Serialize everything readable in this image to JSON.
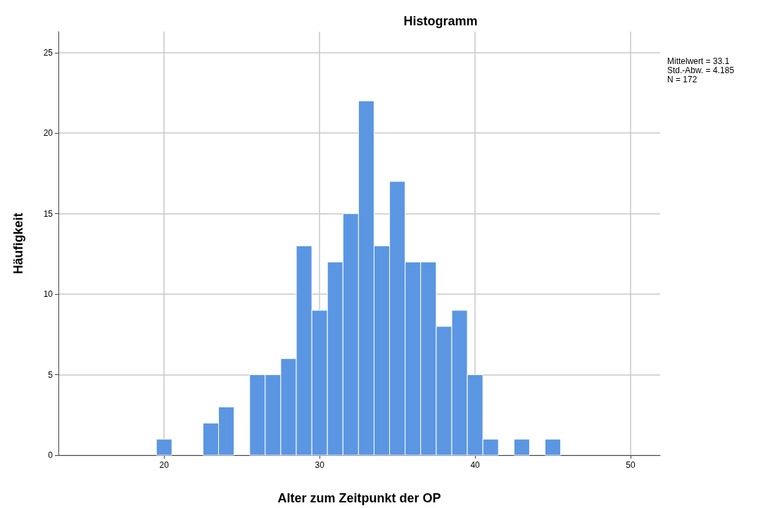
{
  "chart_data": {
    "type": "histogram",
    "title": "Histogramm",
    "xlabel": "Alter zum Zeitpunkt der OP",
    "ylabel": "Häufigkeit",
    "bins": [
      19.5,
      20.5,
      21.5,
      22.5,
      23.5,
      24.5,
      25.5,
      26.5,
      27.5,
      28.5,
      29.5,
      30.5,
      31.5,
      32.5,
      33.5,
      34.5,
      35.5,
      36.5,
      37.5,
      38.5,
      39.5,
      40.5,
      41.5,
      42.5,
      43.5,
      44.5,
      45.5
    ],
    "values": [
      1,
      0,
      0,
      2,
      3,
      0,
      5,
      5,
      6,
      13,
      9,
      12,
      15,
      22,
      13,
      17,
      12,
      12,
      8,
      9,
      5,
      1,
      0,
      1,
      0,
      1
    ],
    "color": "#5b96e3",
    "xlim": [
      13.2,
      51.9
    ],
    "xticks": [
      20,
      30,
      40,
      50
    ],
    "ylim": [
      0,
      26.3
    ],
    "yticks": [
      0,
      5,
      10,
      15,
      20,
      25
    ],
    "grid": true,
    "annotations": [
      "Mittelwert = 33.1",
      "Std.-Abw. = 4.185",
      "N = 172"
    ]
  }
}
